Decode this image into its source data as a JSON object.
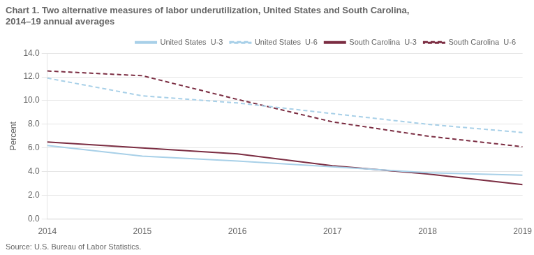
{
  "chart_data": {
    "type": "line",
    "title": "Chart 1. Two alternative measures of labor underutilization, United States and South Carolina,\n2014–19 annual averages",
    "ylabel": "Percent",
    "source": "Source: U.S. Bureau of Labor Statistics.",
    "x": [
      2014,
      2015,
      2016,
      2017,
      2018,
      2019
    ],
    "series": [
      {
        "name": "United States  U-3",
        "color": "#a8d0e8",
        "line_style": "solid",
        "values": [
          6.2,
          5.3,
          4.9,
          4.4,
          3.9,
          3.7
        ]
      },
      {
        "name": "United States  U-6",
        "color": "#a8d0e8",
        "line_style": "dashed",
        "values": [
          11.9,
          10.4,
          9.8,
          8.9,
          8.0,
          7.3
        ]
      },
      {
        "name": "South Carolina  U-3",
        "color": "#7B2D42",
        "line_style": "solid",
        "values": [
          6.5,
          6.0,
          5.5,
          4.5,
          3.8,
          2.9
        ]
      },
      {
        "name": "South Carolina  U-6",
        "color": "#7B2D42",
        "line_style": "dashed",
        "values": [
          12.5,
          12.1,
          10.1,
          8.2,
          7.0,
          6.1
        ]
      }
    ],
    "xlim": [
      2014,
      2019
    ],
    "xticks": [
      2014,
      2015,
      2016,
      2017,
      2018,
      2019
    ],
    "ylim": [
      0.0,
      14.0
    ],
    "yticks": [
      {
        "value": 0,
        "label": "0.0"
      },
      {
        "value": 2,
        "label": "2.0"
      },
      {
        "value": 4,
        "label": "4.0"
      },
      {
        "value": 6,
        "label": "6.0"
      },
      {
        "value": 8,
        "label": "8.0"
      },
      {
        "value": 10,
        "label": "10.0"
      },
      {
        "value": 12,
        "label": "12.0"
      },
      {
        "value": 14,
        "label": "14.0"
      }
    ],
    "grid": "y",
    "legend": "upper right"
  }
}
